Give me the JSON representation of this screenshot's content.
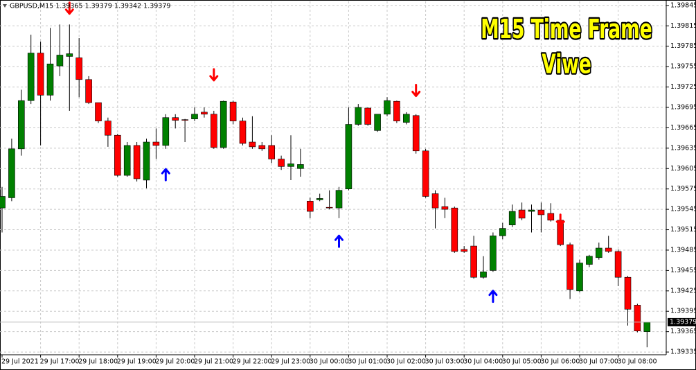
{
  "chart_data": {
    "type": "candlestick",
    "title": "GBPUSD,M15  1.39365 1.39379 1.39342 1.39379",
    "annotation_line1": "M15 Time Frame",
    "annotation_line2": "Viwe",
    "categories": [
      "29 Jul 2021",
      null,
      null,
      null,
      "29 Jul 17:00",
      null,
      null,
      null,
      "29 Jul 18:00",
      null,
      null,
      null,
      "29 Jul 19:00",
      null,
      null,
      null,
      "29 Jul 20:00",
      null,
      null,
      null,
      "29 Jul 21:00",
      null,
      null,
      null,
      "29 Jul 22:00",
      null,
      null,
      null,
      "29 Jul 23:00",
      null,
      null,
      null,
      "30 Jul 00:00",
      null,
      null,
      null,
      "30 Jul 01:00",
      null,
      null,
      null,
      "30 Jul 02:00",
      null,
      null,
      null,
      "30 Jul 03:00",
      null,
      null,
      null,
      "30 Jul 04:00",
      null,
      null,
      null,
      "30 Jul 05:00",
      null,
      null,
      null,
      "30 Jul 06:00",
      null,
      null,
      null,
      "30 Jul 07:00",
      null,
      null,
      null,
      "30 Jul 08:00",
      null,
      null,
      null
    ],
    "open": [
      1.39547,
      1.39562,
      1.39634,
      1.39705,
      1.39775,
      1.39713,
      1.39756,
      1.3977,
      1.39768,
      1.39736,
      1.39702,
      1.39675,
      1.39654,
      1.39595,
      1.39639,
      1.39588,
      1.39644,
      1.39639,
      1.3968,
      1.39677,
      1.39678,
      1.39688,
      1.39685,
      1.39636,
      1.39703,
      1.39675,
      1.39644,
      1.39639,
      1.39639,
      1.39619,
      1.39608,
      1.39605,
      1.39557,
      1.39559,
      1.39548,
      1.39547,
      1.39575,
      1.3967,
      1.39694,
      1.39661,
      1.39685,
      1.39704,
      1.39673,
      1.39683,
      1.39631,
      1.39568,
      1.39549,
      1.39547,
      1.39486,
      1.39491,
      1.39445,
      1.39455,
      1.39506,
      1.39522,
      1.39544,
      1.39542,
      1.39544,
      1.39539,
      1.39529,
      1.39493,
      1.39425,
      1.39464,
      1.39474,
      1.39488,
      1.39483,
      1.39445,
      1.39404,
      1.39365
    ],
    "high": [
      1.39578,
      1.39649,
      1.39721,
      1.39802,
      1.39792,
      1.39812,
      1.39817,
      1.39817,
      1.39797,
      1.39741,
      1.39702,
      1.3968,
      1.39656,
      1.39644,
      1.39644,
      1.39649,
      1.39664,
      1.39685,
      1.39685,
      1.39678,
      1.39695,
      1.39695,
      1.3969,
      1.39705,
      1.39705,
      1.3968,
      1.39682,
      1.39644,
      1.39654,
      1.39624,
      1.39654,
      1.39634,
      1.39562,
      1.39568,
      1.39573,
      1.39578,
      1.39695,
      1.397,
      1.39695,
      1.39685,
      1.3971,
      1.39705,
      1.39688,
      1.39685,
      1.39634,
      1.39573,
      1.39562,
      1.39549,
      1.39491,
      1.39506,
      1.39476,
      1.39511,
      1.39525,
      1.39552,
      1.39555,
      1.39552,
      1.39555,
      1.39554,
      1.39532,
      1.39496,
      1.39471,
      1.39478,
      1.39496,
      1.39506,
      1.39486,
      1.39447,
      1.39406,
      1.39379
    ],
    "low": [
      1.39511,
      1.39557,
      1.39624,
      1.397,
      1.39639,
      1.39705,
      1.39741,
      1.3969,
      1.3971,
      1.397,
      1.39672,
      1.39637,
      1.39593,
      1.39593,
      1.39586,
      1.39576,
      1.39619,
      1.39634,
      1.39664,
      1.39644,
      1.39675,
      1.3968,
      1.39634,
      1.39634,
      1.3967,
      1.39639,
      1.39634,
      1.39631,
      1.39613,
      1.39603,
      1.39588,
      1.39593,
      1.39532,
      1.39557,
      1.39545,
      1.39532,
      1.39573,
      1.39668,
      1.39668,
      1.39659,
      1.39682,
      1.39672,
      1.3967,
      1.39627,
      1.39562,
      1.39517,
      1.39532,
      1.39481,
      1.39481,
      1.39443,
      1.39443,
      1.39453,
      1.39501,
      1.39519,
      1.39529,
      1.39511,
      1.39511,
      1.39527,
      1.39491,
      1.39413,
      1.39423,
      1.3946,
      1.39471,
      1.39481,
      1.39432,
      1.39374,
      1.39364,
      1.39342
    ],
    "close": [
      1.39564,
      1.39634,
      1.39705,
      1.39775,
      1.39713,
      1.39759,
      1.39772,
      1.39774,
      1.39736,
      1.39702,
      1.39675,
      1.39654,
      1.39595,
      1.39639,
      1.3959,
      1.39644,
      1.39639,
      1.3968,
      1.39676,
      1.39676,
      1.39685,
      1.39685,
      1.39636,
      1.39704,
      1.39675,
      1.39642,
      1.39637,
      1.39634,
      1.39619,
      1.39608,
      1.39612,
      1.39611,
      1.39542,
      1.39561,
      1.39547,
      1.39573,
      1.3967,
      1.39695,
      1.3967,
      1.39685,
      1.39705,
      1.39675,
      1.39685,
      1.39631,
      1.39564,
      1.39547,
      1.39545,
      1.39483,
      1.39483,
      1.39445,
      1.39453,
      1.39506,
      1.39517,
      1.39542,
      1.39532,
      1.39544,
      1.39537,
      1.39529,
      1.39493,
      1.39427,
      1.39466,
      1.39476,
      1.39488,
      1.39483,
      1.39445,
      1.39398,
      1.39366,
      1.39379
    ],
    "sell_signals": [
      null,
      null,
      null,
      null,
      null,
      null,
      null,
      1.39841,
      null,
      null,
      null,
      null,
      null,
      null,
      null,
      null,
      null,
      null,
      null,
      null,
      null,
      null,
      1.39743,
      null,
      null,
      null,
      null,
      null,
      null,
      null,
      null,
      null,
      null,
      null,
      null,
      null,
      null,
      null,
      null,
      null,
      null,
      null,
      null,
      1.3972,
      null,
      null,
      null,
      null,
      null,
      null,
      null,
      null,
      null,
      null,
      null,
      null,
      null,
      null,
      1.39529,
      null,
      null,
      null,
      null,
      null,
      null,
      null,
      null,
      null
    ],
    "buy_signals": [
      null,
      null,
      null,
      null,
      null,
      null,
      null,
      null,
      null,
      null,
      null,
      null,
      null,
      null,
      null,
      null,
      null,
      1.39596,
      null,
      null,
      null,
      null,
      null,
      null,
      null,
      null,
      null,
      null,
      null,
      null,
      null,
      null,
      null,
      null,
      null,
      1.39498,
      null,
      null,
      null,
      null,
      null,
      null,
      null,
      null,
      null,
      null,
      null,
      null,
      null,
      null,
      null,
      1.39417,
      null,
      null,
      null,
      null,
      null,
      null,
      null,
      null,
      null,
      null,
      null,
      null,
      null,
      null,
      null,
      null
    ],
    "current_price": 1.39379,
    "up_color": "#008000",
    "down_color": "#ff0000",
    "sell_color": "#ff0000",
    "buy_color": "#0000ff",
    "ylim": [
      1.39331,
      1.39851
    ],
    "yticks": [
      1.39335,
      1.39365,
      1.39395,
      1.39425,
      1.39455,
      1.39485,
      1.39515,
      1.39545,
      1.39575,
      1.39605,
      1.39635,
      1.39665,
      1.39695,
      1.39725,
      1.39755,
      1.39785,
      1.39815,
      1.39845
    ],
    "grid": true
  }
}
